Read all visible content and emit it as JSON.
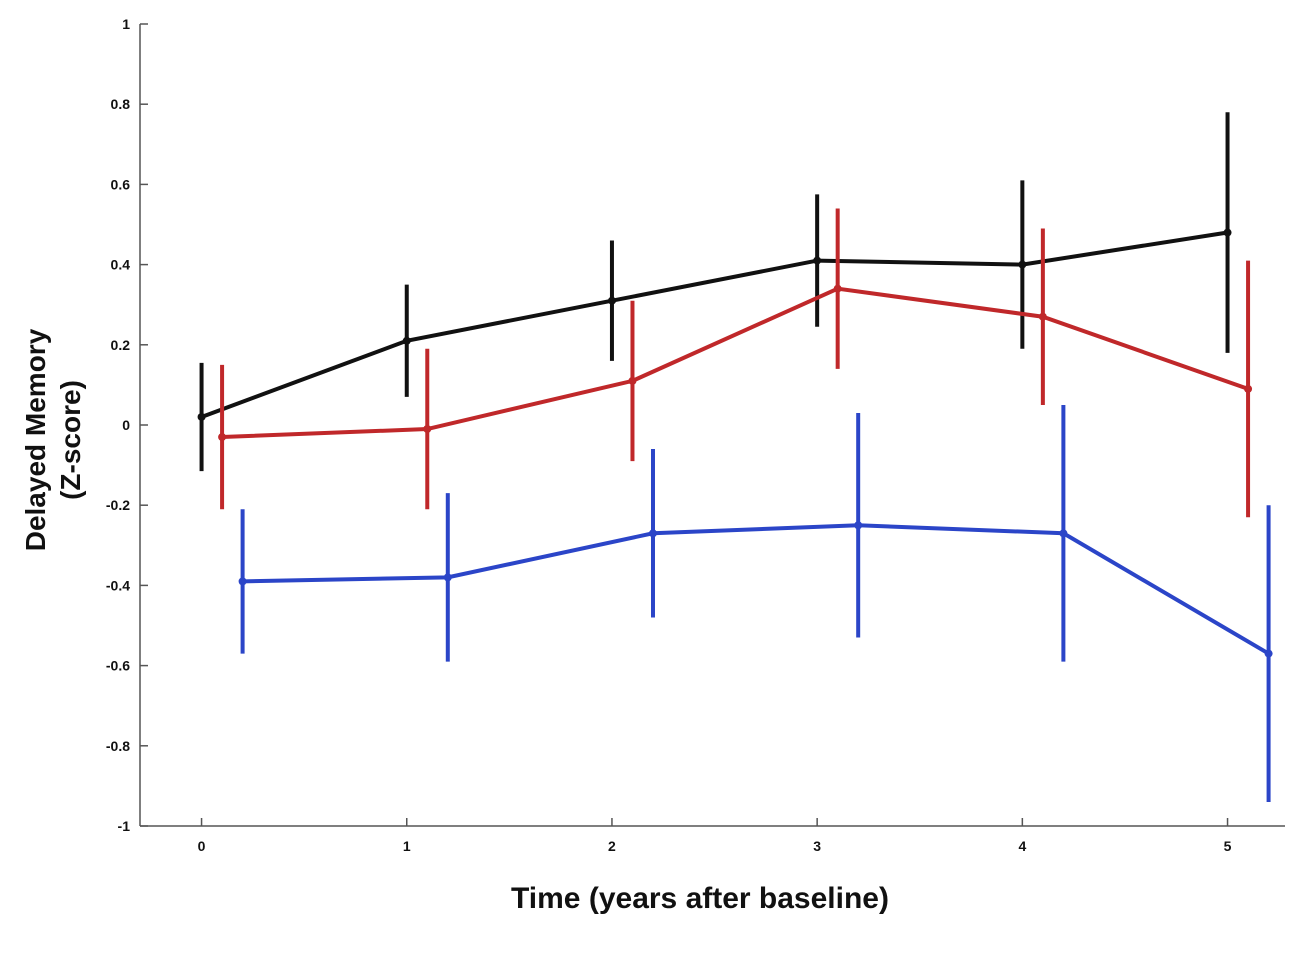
{
  "chart_data": {
    "type": "line",
    "xlabel": "Time (years after baseline)",
    "ylabel": [
      "Delayed Memory",
      "(Z-score)"
    ],
    "xlim": [
      -0.3,
      5.28
    ],
    "xticks": [
      0,
      1,
      2,
      3,
      4,
      5
    ],
    "ylim": [
      -1,
      1
    ],
    "yticks": [
      -1,
      -0.8,
      -0.6,
      -0.4,
      -0.2,
      0,
      0.2,
      0.4,
      0.6,
      0.8,
      1
    ],
    "series": [
      {
        "color": "#111111",
        "x": [
          0,
          1,
          2,
          3,
          4,
          5
        ],
        "values": [
          0.02,
          0.21,
          0.31,
          0.41,
          0.4,
          0.48
        ],
        "errors": [
          0.135,
          0.14,
          0.15,
          0.165,
          0.21,
          0.3
        ]
      },
      {
        "color": "#c0282a",
        "x": [
          0.1,
          1.1,
          2.1,
          3.1,
          4.1,
          5.1
        ],
        "values": [
          -0.03,
          -0.01,
          0.11,
          0.34,
          0.27,
          0.09
        ],
        "errors": [
          0.18,
          0.2,
          0.2,
          0.2,
          0.22,
          0.32
        ]
      },
      {
        "color": "#2b45c8",
        "x": [
          0.2,
          1.2,
          2.2,
          3.2,
          4.2,
          5.2
        ],
        "values": [
          -0.39,
          -0.38,
          -0.27,
          -0.25,
          -0.27,
          -0.57
        ],
        "errors": [
          0.18,
          0.21,
          0.21,
          0.28,
          0.32,
          0.37
        ]
      }
    ]
  }
}
